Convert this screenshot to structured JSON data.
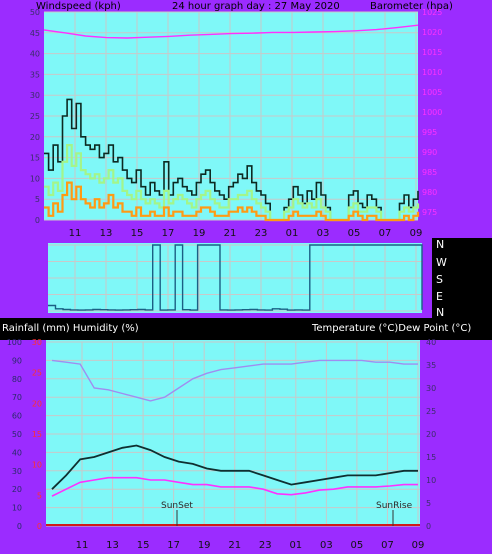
{
  "header": {
    "left_label": "Windspeed (kph)",
    "title": "24 hour graph day : 27 May 2020",
    "right_label": "Barometer (hpa)"
  },
  "middle": {
    "compass": [
      "N",
      "W",
      "S",
      "E",
      "N"
    ]
  },
  "bottom_header": {
    "left_label": "Rainfall (mm)  Humidity (%)",
    "right_label": "Temperature (°C)Dew Point (°C)"
  },
  "annotations": {
    "sunset": "SunSet",
    "sunrise": "SunRise"
  },
  "colors": {
    "panel_bg": "#9b2cff",
    "plot_bg": "#7ff8f8",
    "grid": "#c9c9c9",
    "wind_gust": "#0c2a22",
    "wind_avg": "#a3f58a",
    "wind_low": "#ff9a14",
    "barometer": "#ff30ff",
    "direction": "#1b5f84",
    "temperature": "#0f2f30",
    "dewpoint": "#ff30ff",
    "humidity": "#a08df0",
    "rain": "#d01a1a",
    "tick_left": "#3b2d6b",
    "tick_right_baro": "#ff30ff",
    "tick_right_temp": "#3b2d6b",
    "tick_rain": "#ff3030"
  },
  "chart_data": [
    {
      "type": "line",
      "name": "wind-barometer",
      "x_ticks": [
        "11",
        "13",
        "15",
        "17",
        "19",
        "21",
        "23",
        "01",
        "03",
        "05",
        "07",
        "09"
      ],
      "ylabel": "Windspeed (kph)",
      "y2label": "Barometer (hpa)",
      "ylim": [
        0,
        50
      ],
      "y_ticks": [
        0,
        5,
        10,
        15,
        20,
        25,
        30,
        35,
        40,
        45,
        50
      ],
      "y2lim": [
        973,
        1025
      ],
      "y2_ticks": [
        975,
        980,
        985,
        990,
        995,
        1000,
        1005,
        1010,
        1015,
        1020,
        1025
      ],
      "grid": true,
      "series": [
        {
          "name": "Gust",
          "color": "#0c2a22",
          "values": [
            16,
            12,
            18,
            14,
            25,
            29,
            22,
            28,
            20,
            18,
            17,
            18,
            15,
            16,
            18,
            14,
            15,
            12,
            10,
            9,
            12,
            8,
            6,
            9,
            7,
            6,
            14,
            6,
            9,
            10,
            8,
            7,
            6,
            9,
            11,
            12,
            9,
            7,
            6,
            5,
            8,
            9,
            11,
            10,
            13,
            9,
            7,
            6,
            4,
            0,
            0,
            0,
            3,
            5,
            8,
            6,
            4,
            7,
            5,
            9,
            6,
            3,
            0,
            0,
            0,
            0,
            6,
            7,
            4,
            3,
            6,
            5,
            3,
            0,
            0,
            0,
            0,
            4,
            6,
            3,
            5,
            7
          ]
        },
        {
          "name": "Average",
          "color": "#a3f58a",
          "values": [
            8,
            6,
            9,
            7,
            14,
            18,
            13,
            16,
            12,
            11,
            10,
            11,
            9,
            10,
            12,
            9,
            10,
            7,
            6,
            5,
            7,
            5,
            4,
            5,
            4,
            3,
            7,
            4,
            5,
            6,
            5,
            4,
            3,
            5,
            6,
            7,
            5,
            4,
            3,
            3,
            5,
            5,
            6,
            6,
            7,
            5,
            4,
            3,
            2,
            0,
            0,
            0,
            2,
            3,
            5,
            4,
            3,
            4,
            3,
            5,
            3,
            2,
            0,
            0,
            0,
            0,
            3,
            4,
            2,
            2,
            3,
            3,
            2,
            0,
            0,
            0,
            0,
            2,
            3,
            2,
            3,
            4
          ]
        },
        {
          "name": "Low",
          "color": "#ff9a14",
          "values": [
            3,
            1,
            4,
            2,
            6,
            9,
            5,
            8,
            5,
            4,
            3,
            5,
            3,
            4,
            6,
            3,
            4,
            2,
            2,
            1,
            3,
            1,
            1,
            2,
            1,
            1,
            3,
            1,
            2,
            2,
            1,
            1,
            1,
            2,
            3,
            3,
            2,
            1,
            1,
            1,
            2,
            2,
            3,
            2,
            3,
            2,
            1,
            1,
            0,
            0,
            0,
            0,
            0,
            1,
            2,
            1,
            1,
            1,
            1,
            2,
            1,
            0,
            0,
            0,
            0,
            0,
            1,
            2,
            1,
            0,
            1,
            1,
            0,
            0,
            0,
            0,
            0,
            0,
            1,
            0,
            1,
            2
          ]
        },
        {
          "name": "Barometer",
          "axis": "y2",
          "color": "#ff30ff",
          "values": [
            1020.5,
            1019.8,
            1019,
            1018.6,
            1018.5,
            1018.7,
            1018.9,
            1019.2,
            1019.4,
            1019.6,
            1019.7,
            1019.9,
            1019.9,
            1020.0,
            1020.1,
            1020.3,
            1020.6,
            1021.1,
            1021.7
          ]
        }
      ]
    },
    {
      "type": "line",
      "name": "wind-direction",
      "compass": [
        "N",
        "W",
        "S",
        "E",
        "N"
      ],
      "ylim": [
        0,
        360
      ],
      "values": [
        30,
        12,
        8,
        6,
        5,
        6,
        8,
        7,
        6,
        5,
        6,
        7,
        8,
        6,
        360,
        5,
        6,
        360,
        7,
        5,
        360,
        360,
        360,
        6,
        5,
        6,
        7,
        8,
        6,
        5,
        12,
        10,
        5,
        6,
        5,
        360,
        360,
        360,
        360,
        360,
        360,
        360,
        360,
        360,
        360,
        360,
        360,
        360,
        360,
        360,
        6
      ]
    },
    {
      "type": "line",
      "name": "temp-humidity",
      "x_ticks": [
        "11",
        "13",
        "15",
        "17",
        "19",
        "21",
        "23",
        "01",
        "03",
        "05",
        "07",
        "09"
      ],
      "ylabel": "Rainfall (mm)  Humidity (%)",
      "y2label": "Temperature (°C)Dew Point (°C)",
      "ylim": [
        0,
        100
      ],
      "y_ticks": [
        0,
        10,
        20,
        30,
        40,
        50,
        60,
        70,
        80,
        90,
        100
      ],
      "rain_ticks": [
        0,
        5,
        10,
        15,
        20,
        25,
        30
      ],
      "y2lim": [
        0,
        40
      ],
      "y2_ticks": [
        0,
        5,
        10,
        15,
        20,
        25,
        30,
        35,
        40
      ],
      "grid": true,
      "series": [
        {
          "name": "Humidity",
          "color": "#a08df0",
          "values": [
            90,
            89,
            88,
            75,
            74,
            72,
            70,
            68,
            70,
            75,
            80,
            83,
            85,
            86,
            87,
            88,
            88,
            88,
            89,
            90,
            90,
            90,
            90,
            89,
            89,
            88,
            88
          ]
        },
        {
          "name": "Temperature",
          "axis": "y2",
          "color": "#0f2f30",
          "values": [
            8,
            11,
            14.5,
            15,
            16,
            17,
            17.5,
            16.5,
            15,
            14,
            13.5,
            12.5,
            12,
            12,
            12,
            11,
            10,
            9,
            9.5,
            10,
            10.5,
            11,
            11,
            11,
            11.5,
            12,
            12
          ]
        },
        {
          "name": "Dew Point",
          "axis": "y2",
          "color": "#ff30ff",
          "values": [
            6.5,
            8,
            9.5,
            10,
            10.5,
            10.5,
            10.5,
            10,
            10,
            9.5,
            9,
            9,
            8.5,
            8.5,
            8.5,
            8,
            7,
            6.8,
            7.2,
            7.8,
            8,
            8.5,
            8.5,
            8.5,
            8.7,
            9,
            9
          ]
        },
        {
          "name": "Rainfall",
          "color": "#d01a1a",
          "values": [
            0,
            0,
            0,
            0,
            0,
            0,
            0,
            0,
            0,
            0,
            0,
            0,
            0,
            0,
            0,
            0,
            0,
            0,
            0,
            0,
            0,
            0,
            0,
            0,
            0,
            0,
            0
          ]
        }
      ]
    }
  ]
}
